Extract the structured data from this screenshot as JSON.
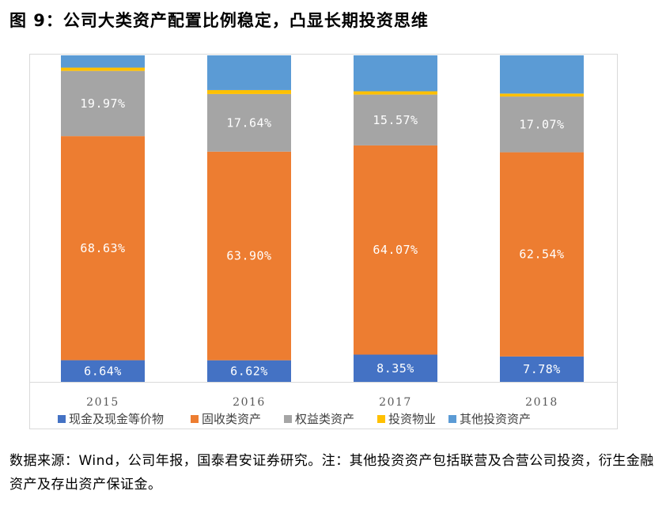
{
  "title": "图 9：公司大类资产配置比例稳定，凸显长期投资思维",
  "source_note": "数据来源：Wind，公司年报，国泰君安证券研究。注：其他投资资产包括联营及合营公司投资，衍生金融资产及存出资产保证金。",
  "chart_data": {
    "type": "bar",
    "stacked": true,
    "percent_stacked": true,
    "categories": [
      "2015",
      "2016",
      "2017",
      "2018"
    ],
    "series": [
      {
        "name": "现金及现金等价物",
        "color": "#4472c4",
        "values": [
          6.64,
          6.62,
          8.35,
          7.78
        ],
        "labels": [
          "6.64%",
          "6.62%",
          "8.35%",
          "7.78%"
        ]
      },
      {
        "name": "固收类资产",
        "color": "#ed7d31",
        "values": [
          68.63,
          63.9,
          64.07,
          62.54
        ],
        "labels": [
          "68.63%",
          "63.90%",
          "64.07%",
          "62.54%"
        ]
      },
      {
        "name": "权益类资产",
        "color": "#a5a5a5",
        "values": [
          19.97,
          17.64,
          15.57,
          17.07
        ],
        "labels": [
          "19.97%",
          "17.64%",
          "15.57%",
          "17.07%"
        ]
      },
      {
        "name": "投资物业",
        "color": "#ffc000",
        "values": [
          1.0,
          1.2,
          1.0,
          0.9
        ],
        "labels": [
          "",
          "",
          "",
          ""
        ]
      },
      {
        "name": "其他投资资产",
        "color": "#5b9bd5",
        "values": [
          3.76,
          10.64,
          11.01,
          11.71
        ],
        "labels": [
          "",
          "",
          "",
          ""
        ]
      }
    ],
    "ylim": [
      0,
      100
    ],
    "grid": false,
    "legend_position": "bottom"
  }
}
